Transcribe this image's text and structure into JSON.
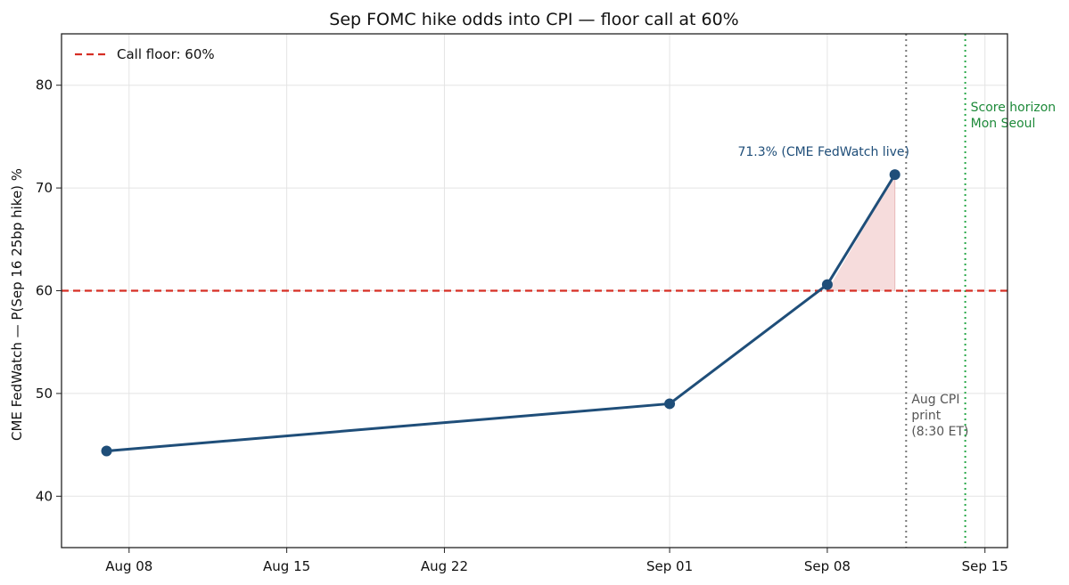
{
  "chart_data": {
    "type": "line",
    "title": "Sep FOMC hike odds into CPI — floor call at 60%",
    "xlabel": "",
    "ylabel": "CME FedWatch — P(Sep 16 25bp hike) %",
    "xlim": [
      "2025-08-05",
      "2025-09-16"
    ],
    "ylim": [
      35,
      85
    ],
    "x_ticks": [
      {
        "date": "2025-08-08",
        "label": "Aug 08"
      },
      {
        "date": "2025-08-15",
        "label": "Aug 15"
      },
      {
        "date": "2025-08-22",
        "label": "Aug 22"
      },
      {
        "date": "2025-09-01",
        "label": "Sep 01"
      },
      {
        "date": "2025-09-08",
        "label": "Sep 08"
      },
      {
        "date": "2025-09-15",
        "label": "Sep 15"
      }
    ],
    "y_ticks": [
      40,
      50,
      60,
      70,
      80
    ],
    "grid": true,
    "legend_position": "top-left",
    "series": [
      {
        "color": "#1f4e79",
        "points": [
          {
            "x": "2025-08-07",
            "y": 44.4
          },
          {
            "x": "2025-09-01",
            "y": 49.0
          },
          {
            "x": "2025-09-08",
            "y": 60.6
          },
          {
            "x": "2025-09-11",
            "y": 71.3
          }
        ]
      }
    ],
    "floor_line": {
      "y": 60,
      "label": "Call floor: 60%",
      "color": "#d62e24"
    },
    "shaded_region": {
      "description_color": "#f4d6d6"
    },
    "vlines": [
      {
        "x": "2025-09-11 12:00",
        "label_lines": [
          "Aug CPI",
          "print",
          "(8:30 ET)"
        ],
        "color": "#777777"
      },
      {
        "x": "2025-09-14 03:00",
        "label_lines": [
          "Score horizon",
          "Mon Seoul"
        ],
        "color": "#2aa84a"
      }
    ],
    "annotations": [
      {
        "text": "71.3% (CME FedWatch live)",
        "x": "2025-09-11",
        "y": 71.3,
        "color": "#1f4e79"
      }
    ]
  }
}
